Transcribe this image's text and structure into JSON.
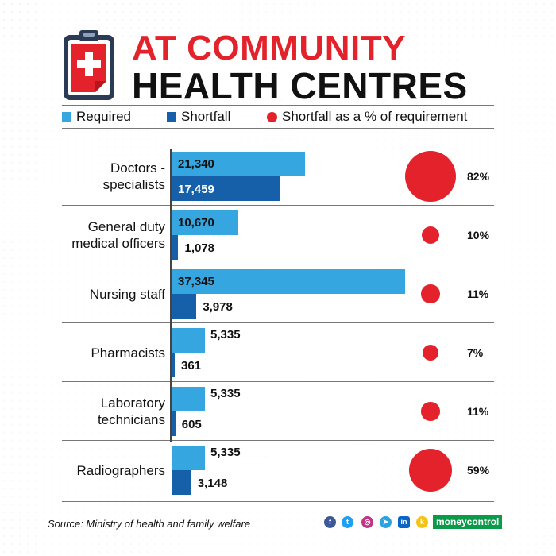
{
  "header": {
    "title_line1": "AT COMMUNITY",
    "title_line2": "HEALTH CENTRES"
  },
  "legend": {
    "required": "Required",
    "shortfall": "Shortfall",
    "shortfall_pct": "Shortfall as a % of requirement"
  },
  "colors": {
    "required": "#35a6e0",
    "shortfall": "#1560a8",
    "pct": "#e3222b"
  },
  "chart_data": {
    "type": "bar",
    "categories": [
      "Doctors - specialists",
      "General duty medical officers",
      "Nursing staff",
      "Pharmacists",
      "Laboratory technicians",
      "Radiographers"
    ],
    "series": [
      {
        "name": "Required",
        "values": [
          21340,
          10670,
          37345,
          5335,
          5335,
          5335
        ],
        "labels": [
          "21,340",
          "10,670",
          "37,345",
          "5,335",
          "5,335",
          "5,335"
        ]
      },
      {
        "name": "Shortfall",
        "values": [
          17459,
          1078,
          3978,
          361,
          605,
          3148
        ],
        "labels": [
          "17,459",
          "1,078",
          "3,978",
          "361",
          "605",
          "3,148"
        ]
      },
      {
        "name": "Shortfall as a % of requirement",
        "values": [
          82,
          10,
          11,
          7,
          11,
          59
        ],
        "labels": [
          "82%",
          "10%",
          "11%",
          "7%",
          "11%",
          "59%"
        ]
      }
    ],
    "category_lines": [
      [
        "Doctors -",
        "specialists"
      ],
      [
        "General duty",
        "medical officers"
      ],
      [
        "Nursing staff"
      ],
      [
        "Pharmacists"
      ],
      [
        "Laboratory",
        "technicians"
      ],
      [
        "Radiographers"
      ]
    ],
    "orientation": "horizontal",
    "legend_position": "top"
  },
  "footer": {
    "source": "Source: Ministry of health and family welfare",
    "brand": "moneycontrol",
    "social_icons": [
      "facebook-icon",
      "twitter-icon",
      "instagram-icon",
      "telegram-icon",
      "linkedin-icon",
      "koo-icon"
    ]
  }
}
